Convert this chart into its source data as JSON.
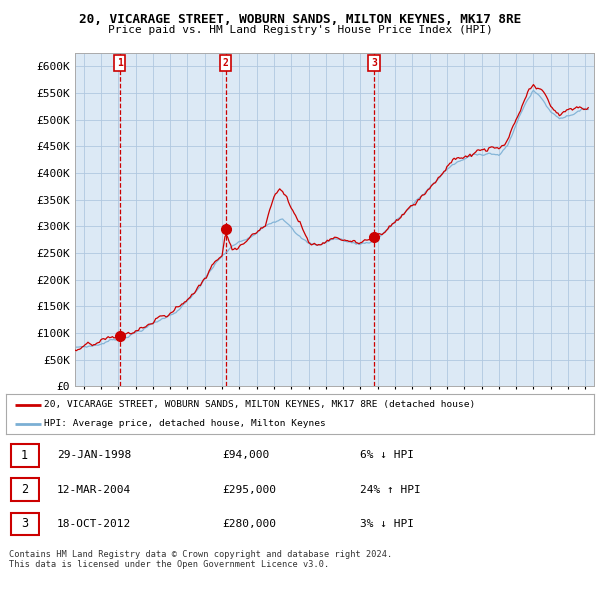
{
  "title_line1": "20, VICARAGE STREET, WOBURN SANDS, MILTON KEYNES, MK17 8RE",
  "title_line2": "Price paid vs. HM Land Registry's House Price Index (HPI)",
  "ylabel_ticks": [
    "£0",
    "£50K",
    "£100K",
    "£150K",
    "£200K",
    "£250K",
    "£300K",
    "£350K",
    "£400K",
    "£450K",
    "£500K",
    "£550K",
    "£600K"
  ],
  "ytick_values": [
    0,
    50000,
    100000,
    150000,
    200000,
    250000,
    300000,
    350000,
    400000,
    450000,
    500000,
    550000,
    600000
  ],
  "ylim": [
    0,
    625000
  ],
  "xlim_start": 1995.5,
  "xlim_end": 2025.5,
  "hpi_color": "#7bafd4",
  "price_color": "#CC0000",
  "chart_bg": "#dce9f5",
  "sale1_date": 1998.08,
  "sale1_price": 94000,
  "sale1_label": "1",
  "sale2_date": 2004.2,
  "sale2_price": 295000,
  "sale2_label": "2",
  "sale3_date": 2012.8,
  "sale3_price": 280000,
  "sale3_label": "3",
  "legend_line1": "20, VICARAGE STREET, WOBURN SANDS, MILTON KEYNES, MK17 8RE (detached house)",
  "legend_line2": "HPI: Average price, detached house, Milton Keynes",
  "table_row1": [
    "1",
    "29-JAN-1998",
    "£94,000",
    "6% ↓ HPI"
  ],
  "table_row2": [
    "2",
    "12-MAR-2004",
    "£295,000",
    "24% ↑ HPI"
  ],
  "table_row3": [
    "3",
    "18-OCT-2012",
    "£280,000",
    "3% ↓ HPI"
  ],
  "footer": "Contains HM Land Registry data © Crown copyright and database right 2024.\nThis data is licensed under the Open Government Licence v3.0.",
  "background_color": "#ffffff",
  "grid_color": "#b0c8e0"
}
